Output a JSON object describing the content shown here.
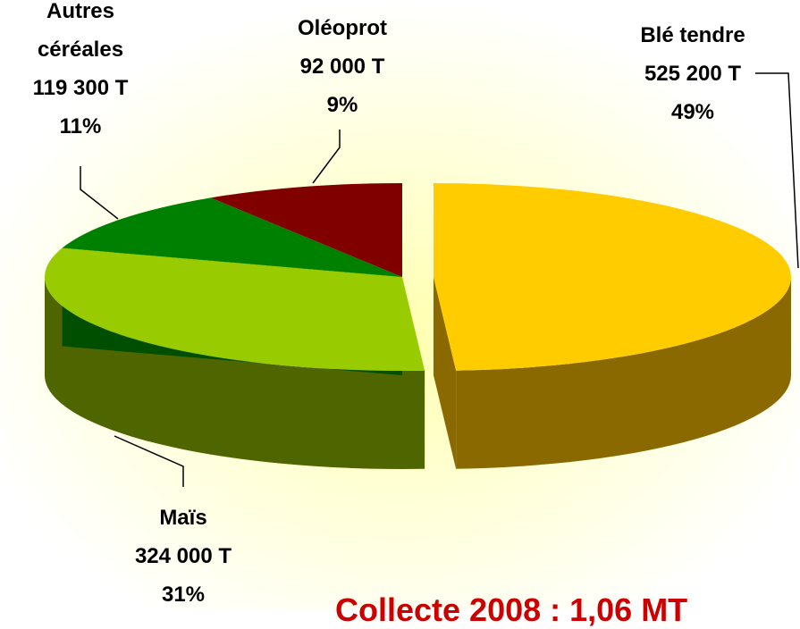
{
  "chart_data": {
    "type": "pie3d",
    "title": "Collecte 2008 : 1,06 MT",
    "categories": [
      "Blé tendre",
      "Maïs",
      "Autres céréales",
      "Oléoprot"
    ],
    "values": [
      49,
      31,
      11,
      9
    ],
    "value_labels": [
      "49%",
      "31%",
      "11%",
      "9%"
    ],
    "tonnages": [
      525200,
      324000,
      119300,
      92000
    ],
    "tonnage_labels": [
      "525 200 T",
      "324 000 T",
      "119 300 T",
      "92 000 T"
    ],
    "colors": [
      "#ffcc00",
      "#99cc00",
      "#008000",
      "#800000"
    ],
    "side_colors": [
      "#8a6a00",
      "#4f6600",
      "#004f00",
      "#4d0000"
    ],
    "exploded": [
      true,
      false,
      false,
      false
    ]
  }
}
